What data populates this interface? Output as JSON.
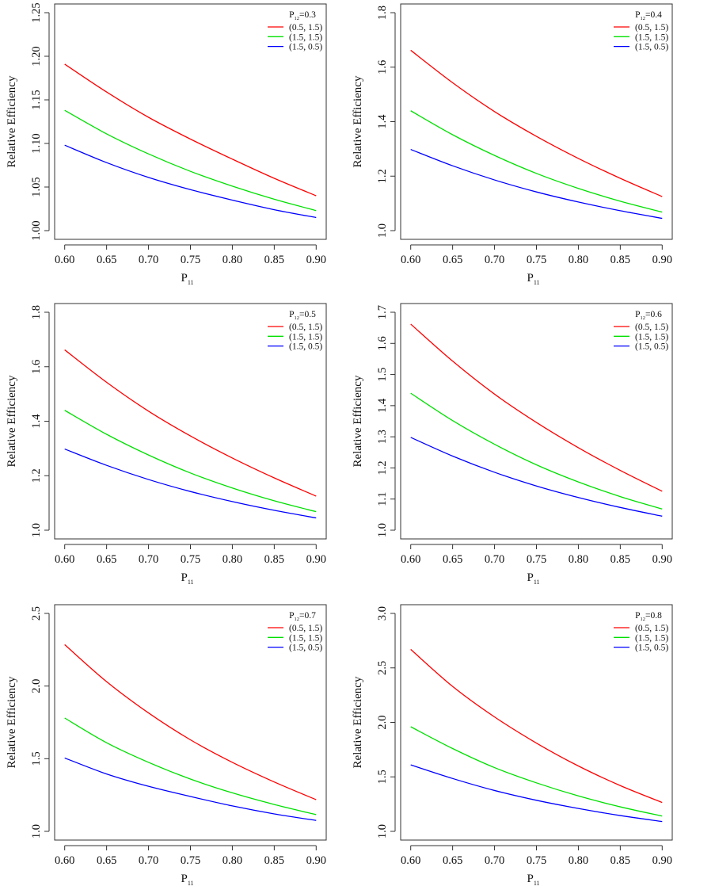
{
  "chart_data": [
    {
      "type": "line",
      "panel_label": "P12=0.3",
      "legend_title_base": "P",
      "legend_title_sub": "12",
      "legend_title_value": "=0.3",
      "xlabel_base": "P",
      "xlabel_sub": "11",
      "ylabel": "Relative Efficiency",
      "xlim": [
        0.6,
        0.9
      ],
      "ylim": [
        1.0,
        1.25
      ],
      "xticks": [
        0.6,
        0.65,
        0.7,
        0.75,
        0.8,
        0.85,
        0.9
      ],
      "xtick_labels": [
        "0.60",
        "0.65",
        "0.70",
        "0.75",
        "0.80",
        "0.85",
        "0.90"
      ],
      "yticks": [
        1.0,
        1.05,
        1.1,
        1.15,
        1.2,
        1.25
      ],
      "ytick_labels": [
        "1.00",
        "1.05",
        "1.10",
        "1.15",
        "1.20",
        "1.25"
      ],
      "legend_position": "top-right",
      "grid": false,
      "x": [
        0.6,
        0.65,
        0.7,
        0.75,
        0.8,
        0.85,
        0.9
      ],
      "series": [
        {
          "name": "(0.5, 1.5)",
          "color": "#ff0000",
          "values": [
            1.191,
            1.159,
            1.13,
            1.105,
            1.082,
            1.06,
            1.04
          ]
        },
        {
          "name": "(1.5, 1.5)",
          "color": "#00e000",
          "values": [
            1.138,
            1.111,
            1.088,
            1.068,
            1.051,
            1.036,
            1.023
          ]
        },
        {
          "name": "(1.5, 0.5)",
          "color": "#0000ff",
          "values": [
            1.098,
            1.078,
            1.061,
            1.047,
            1.035,
            1.024,
            1.015
          ]
        }
      ]
    },
    {
      "type": "line",
      "panel_label": "P12=0.4",
      "legend_title_base": "P",
      "legend_title_sub": "12",
      "legend_title_value": "=0.4",
      "xlabel_base": "P",
      "xlabel_sub": "11",
      "ylabel": "Relative Efficiency",
      "xlim": [
        0.6,
        0.9
      ],
      "ylim": [
        1.0,
        1.8
      ],
      "xticks": [
        0.6,
        0.65,
        0.7,
        0.75,
        0.8,
        0.85,
        0.9
      ],
      "xtick_labels": [
        "0.60",
        "0.65",
        "0.70",
        "0.75",
        "0.80",
        "0.85",
        "0.90"
      ],
      "yticks": [
        1.0,
        1.2,
        1.4,
        1.6,
        1.8
      ],
      "ytick_labels": [
        "1.0",
        "1.2",
        "1.4",
        "1.6",
        "1.8"
      ],
      "legend_position": "top-right",
      "grid": false,
      "x": [
        0.6,
        0.65,
        0.7,
        0.75,
        0.8,
        0.85,
        0.9
      ],
      "series": [
        {
          "name": "(0.5, 1.5)",
          "color": "#ff0000",
          "values": [
            1.662,
            1.543,
            1.437,
            1.346,
            1.265,
            1.192,
            1.125
          ]
        },
        {
          "name": "(1.5, 1.5)",
          "color": "#00e000",
          "values": [
            1.44,
            1.352,
            1.276,
            1.21,
            1.155,
            1.108,
            1.068
          ]
        },
        {
          "name": "(1.5, 0.5)",
          "color": "#0000ff",
          "values": [
            1.298,
            1.238,
            1.186,
            1.142,
            1.105,
            1.073,
            1.045
          ]
        }
      ]
    },
    {
      "type": "line",
      "panel_label": "P12=0.5",
      "legend_title_base": "P",
      "legend_title_sub": "12",
      "legend_title_value": "=0.5",
      "xlabel_base": "P",
      "xlabel_sub": "11",
      "ylabel": "Relative Efficiency",
      "xlim": [
        0.6,
        0.9
      ],
      "ylim": [
        1.0,
        1.8
      ],
      "xticks": [
        0.6,
        0.65,
        0.7,
        0.75,
        0.8,
        0.85,
        0.9
      ],
      "xtick_labels": [
        "0.60",
        "0.65",
        "0.70",
        "0.75",
        "0.80",
        "0.85",
        "0.90"
      ],
      "yticks": [
        1.0,
        1.2,
        1.4,
        1.6,
        1.8
      ],
      "ytick_labels": [
        "1.0",
        "1.2",
        "1.4",
        "1.6",
        "1.8"
      ],
      "legend_position": "top-right",
      "grid": false,
      "x": [
        0.6,
        0.65,
        0.7,
        0.75,
        0.8,
        0.85,
        0.9
      ],
      "series": [
        {
          "name": "(0.5, 1.5)",
          "color": "#ff0000",
          "values": [
            1.662,
            1.543,
            1.437,
            1.346,
            1.265,
            1.192,
            1.125
          ]
        },
        {
          "name": "(1.5, 1.5)",
          "color": "#00e000",
          "values": [
            1.44,
            1.352,
            1.276,
            1.21,
            1.155,
            1.108,
            1.068
          ]
        },
        {
          "name": "(1.5, 0.5)",
          "color": "#0000ff",
          "values": [
            1.298,
            1.238,
            1.186,
            1.142,
            1.105,
            1.073,
            1.045
          ]
        }
      ]
    },
    {
      "type": "line",
      "panel_label": "P12=0.6",
      "legend_title_base": "P",
      "legend_title_sub": "12",
      "legend_title_value": "=0.6",
      "xlabel_base": "P",
      "xlabel_sub": "11",
      "ylabel": "Relative Efficiency",
      "xlim": [
        0.6,
        0.9
      ],
      "ylim": [
        1.0,
        1.7
      ],
      "xticks": [
        0.6,
        0.65,
        0.7,
        0.75,
        0.8,
        0.85,
        0.9
      ],
      "xtick_labels": [
        "0.60",
        "0.65",
        "0.70",
        "0.75",
        "0.80",
        "0.85",
        "0.90"
      ],
      "yticks": [
        1.0,
        1.1,
        1.2,
        1.3,
        1.4,
        1.5,
        1.6,
        1.7
      ],
      "ytick_labels": [
        "1.0",
        "1.1",
        "1.2",
        "1.3",
        "1.4",
        "1.5",
        "1.6",
        "1.7"
      ],
      "legend_position": "top-right",
      "grid": false,
      "x": [
        0.6,
        0.65,
        0.7,
        0.75,
        0.8,
        0.85,
        0.9
      ],
      "series": [
        {
          "name": "(0.5, 1.5)",
          "color": "#ff0000",
          "values": [
            1.662,
            1.543,
            1.437,
            1.346,
            1.265,
            1.192,
            1.125
          ]
        },
        {
          "name": "(1.5, 1.5)",
          "color": "#00e000",
          "values": [
            1.44,
            1.352,
            1.276,
            1.21,
            1.155,
            1.108,
            1.068
          ]
        },
        {
          "name": "(1.5, 0.5)",
          "color": "#0000ff",
          "values": [
            1.298,
            1.238,
            1.186,
            1.142,
            1.105,
            1.073,
            1.045
          ]
        }
      ]
    },
    {
      "type": "line",
      "panel_label": "P12=0.7",
      "legend_title_base": "P",
      "legend_title_sub": "12",
      "legend_title_value": "=0.7",
      "xlabel_base": "P",
      "xlabel_sub": "11",
      "ylabel": "Relative Efficiency",
      "xlim": [
        0.6,
        0.9
      ],
      "ylim": [
        1.0,
        2.5
      ],
      "xticks": [
        0.6,
        0.65,
        0.7,
        0.75,
        0.8,
        0.85,
        0.9
      ],
      "xtick_labels": [
        "0.60",
        "0.65",
        "0.70",
        "0.75",
        "0.80",
        "0.85",
        "0.90"
      ],
      "yticks": [
        1.0,
        1.5,
        2.0,
        2.5
      ],
      "ytick_labels": [
        "1.0",
        "1.5",
        "2.0",
        "2.5"
      ],
      "legend_position": "top-right",
      "grid": false,
      "x": [
        0.6,
        0.65,
        0.7,
        0.75,
        0.8,
        0.85,
        0.9
      ],
      "series": [
        {
          "name": "(0.5, 1.5)",
          "color": "#ff0000",
          "values": [
            2.285,
            2.03,
            1.815,
            1.63,
            1.475,
            1.34,
            1.218
          ]
        },
        {
          "name": "(1.5, 1.5)",
          "color": "#00e000",
          "values": [
            1.78,
            1.61,
            1.475,
            1.36,
            1.265,
            1.185,
            1.115
          ]
        },
        {
          "name": "(1.5, 0.5)",
          "color": "#0000ff",
          "values": [
            1.505,
            1.395,
            1.31,
            1.24,
            1.175,
            1.12,
            1.075
          ]
        }
      ]
    },
    {
      "type": "line",
      "panel_label": "P12=0.8",
      "legend_title_base": "P",
      "legend_title_sub": "12",
      "legend_title_value": "=0.8",
      "xlabel_base": "P",
      "xlabel_sub": "11",
      "ylabel": "Relative Efficiency",
      "xlim": [
        0.6,
        0.9
      ],
      "ylim": [
        1.0,
        3.0
      ],
      "xticks": [
        0.6,
        0.65,
        0.7,
        0.75,
        0.8,
        0.85,
        0.9
      ],
      "xtick_labels": [
        "0.60",
        "0.65",
        "0.70",
        "0.75",
        "0.80",
        "0.85",
        "0.90"
      ],
      "yticks": [
        1.0,
        1.5,
        2.0,
        2.5,
        3.0
      ],
      "ytick_labels": [
        "1.0",
        "1.5",
        "2.0",
        "2.5",
        "3.0"
      ],
      "legend_position": "top-right",
      "grid": false,
      "x": [
        0.6,
        0.65,
        0.7,
        0.75,
        0.8,
        0.85,
        0.9
      ],
      "series": [
        {
          "name": "(0.5, 1.5)",
          "color": "#ff0000",
          "values": [
            2.67,
            2.33,
            2.05,
            1.81,
            1.6,
            1.42,
            1.265
          ]
        },
        {
          "name": "(1.5, 1.5)",
          "color": "#00e000",
          "values": [
            1.96,
            1.76,
            1.585,
            1.445,
            1.325,
            1.225,
            1.14
          ]
        },
        {
          "name": "(1.5, 0.5)",
          "color": "#0000ff",
          "values": [
            1.61,
            1.485,
            1.375,
            1.285,
            1.21,
            1.145,
            1.09
          ]
        }
      ]
    }
  ]
}
